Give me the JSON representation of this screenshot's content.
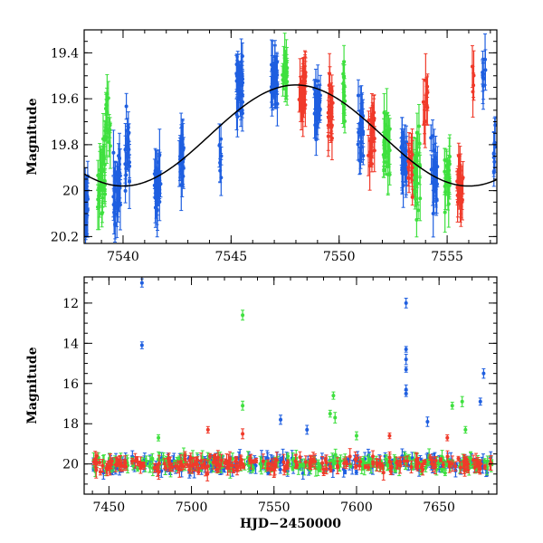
{
  "colors": {
    "blue": "#1f5fe0",
    "green": "#3fe03f",
    "red": "#f03a2a",
    "model": "#000000"
  },
  "chart_data": [
    {
      "type": "scatter",
      "panel": "top",
      "title": "",
      "xlabel": "",
      "ylabel": "Magnitude",
      "xlim": [
        7538.2,
        7557.3
      ],
      "ylim": [
        20.23,
        19.3
      ],
      "y_inverted": true,
      "grid": false,
      "xticks": [
        7540,
        7545,
        7550,
        7555
      ],
      "xtick_labels": [
        "7540",
        "7545",
        "7550",
        "7555"
      ],
      "yticks": [
        19.4,
        19.6,
        19.8,
        20,
        20.2
      ],
      "ytick_labels": [
        "19.4",
        "19.6",
        "19.8",
        "20",
        "20.2"
      ],
      "model_curve": {
        "description_shape": "sinusoid",
        "mean": 19.76,
        "amplitude": 0.22,
        "peak_x": 7548,
        "period": 16
      },
      "series": [
        {
          "color": "blue",
          "clusters": [
            {
              "x": 7538.3,
              "width": 0.2,
              "y_center": 20.05,
              "y_spread": 0.2,
              "n": 26
            },
            {
              "x": 7539.7,
              "width": 0.35,
              "y_center": 20.0,
              "y_spread": 0.22,
              "n": 32
            },
            {
              "x": 7540.2,
              "width": 0.2,
              "y_center": 19.82,
              "y_spread": 0.25,
              "n": 22
            },
            {
              "x": 7541.6,
              "width": 0.3,
              "y_center": 19.98,
              "y_spread": 0.2,
              "n": 28
            },
            {
              "x": 7542.7,
              "width": 0.2,
              "y_center": 19.85,
              "y_spread": 0.2,
              "n": 22
            },
            {
              "x": 7544.5,
              "width": 0.1,
              "y_center": 19.85,
              "y_spread": 0.25,
              "n": 6
            },
            {
              "x": 7545.4,
              "width": 0.3,
              "y_center": 19.55,
              "y_spread": 0.18,
              "n": 34
            },
            {
              "x": 7547.0,
              "width": 0.3,
              "y_center": 19.52,
              "y_spread": 0.16,
              "n": 30
            },
            {
              "x": 7549.0,
              "width": 0.3,
              "y_center": 19.62,
              "y_spread": 0.18,
              "n": 22
            },
            {
              "x": 7551.0,
              "width": 0.25,
              "y_center": 19.75,
              "y_spread": 0.2,
              "n": 22
            },
            {
              "x": 7553.0,
              "width": 0.25,
              "y_center": 19.88,
              "y_spread": 0.2,
              "n": 26
            },
            {
              "x": 7554.4,
              "width": 0.3,
              "y_center": 19.92,
              "y_spread": 0.22,
              "n": 28
            },
            {
              "x": 7556.7,
              "width": 0.15,
              "y_center": 19.5,
              "y_spread": 0.1,
              "n": 8
            },
            {
              "x": 7557.2,
              "width": 0.1,
              "y_center": 19.85,
              "y_spread": 0.2,
              "n": 8
            }
          ]
        },
        {
          "color": "green",
          "clusters": [
            {
              "x": 7539.0,
              "width": 0.35,
              "y_center": 19.95,
              "y_spread": 0.25,
              "n": 30
            },
            {
              "x": 7539.3,
              "width": 0.25,
              "y_center": 19.7,
              "y_spread": 0.2,
              "n": 16
            },
            {
              "x": 7547.5,
              "width": 0.25,
              "y_center": 19.48,
              "y_spread": 0.12,
              "n": 16
            },
            {
              "x": 7550.2,
              "width": 0.2,
              "y_center": 19.6,
              "y_spread": 0.2,
              "n": 12
            },
            {
              "x": 7552.2,
              "width": 0.3,
              "y_center": 19.8,
              "y_spread": 0.22,
              "n": 26
            },
            {
              "x": 7553.6,
              "width": 0.3,
              "y_center": 19.92,
              "y_spread": 0.24,
              "n": 24
            },
            {
              "x": 7555.0,
              "width": 0.25,
              "y_center": 19.95,
              "y_spread": 0.2,
              "n": 20
            }
          ]
        },
        {
          "color": "red",
          "clusters": [
            {
              "x": 7548.3,
              "width": 0.3,
              "y_center": 19.55,
              "y_spread": 0.2,
              "n": 30
            },
            {
              "x": 7549.6,
              "width": 0.25,
              "y_center": 19.62,
              "y_spread": 0.2,
              "n": 20
            },
            {
              "x": 7551.5,
              "width": 0.3,
              "y_center": 19.75,
              "y_spread": 0.2,
              "n": 22
            },
            {
              "x": 7553.3,
              "width": 0.2,
              "y_center": 19.88,
              "y_spread": 0.2,
              "n": 14
            },
            {
              "x": 7554.0,
              "width": 0.2,
              "y_center": 19.6,
              "y_spread": 0.15,
              "n": 10
            },
            {
              "x": 7555.6,
              "width": 0.3,
              "y_center": 19.98,
              "y_spread": 0.2,
              "n": 22
            },
            {
              "x": 7556.2,
              "width": 0.1,
              "y_center": 19.5,
              "y_spread": 0.1,
              "n": 4
            }
          ]
        }
      ]
    },
    {
      "type": "scatter",
      "panel": "bottom",
      "title": "",
      "xlabel": "HJD−2450000",
      "ylabel": "Magnitude",
      "xlim": [
        7435,
        7685
      ],
      "ylim": [
        21.5,
        10.7
      ],
      "y_inverted": true,
      "grid": false,
      "xticks": [
        7450,
        7500,
        7550,
        7600,
        7650
      ],
      "xtick_labels": [
        "7450",
        "7500",
        "7550",
        "7600",
        "7650"
      ],
      "yticks": [
        12,
        14,
        16,
        18,
        20
      ],
      "ytick_labels": [
        "12",
        "14",
        "16",
        "18",
        "20"
      ],
      "bulk": {
        "x_range": [
          7440,
          7682
        ],
        "y_center": 20.0,
        "y_spread": 0.9,
        "n_per_color": 230
      },
      "outliers": [
        {
          "color": "blue",
          "x": 7470,
          "y": 11.0
        },
        {
          "color": "blue",
          "x": 7470,
          "y": 14.1
        },
        {
          "color": "blue",
          "x": 7630,
          "y": 12.0
        },
        {
          "color": "blue",
          "x": 7630,
          "y": 14.3
        },
        {
          "color": "blue",
          "x": 7630,
          "y": 14.8
        },
        {
          "color": "blue",
          "x": 7630,
          "y": 15.3
        },
        {
          "color": "blue",
          "x": 7630,
          "y": 16.3
        },
        {
          "color": "blue",
          "x": 7630,
          "y": 16.5
        },
        {
          "color": "blue",
          "x": 7643,
          "y": 17.9
        },
        {
          "color": "blue",
          "x": 7677,
          "y": 15.5
        },
        {
          "color": "blue",
          "x": 7675,
          "y": 16.9
        },
        {
          "color": "blue",
          "x": 7554,
          "y": 17.8
        },
        {
          "color": "blue",
          "x": 7570,
          "y": 18.3
        },
        {
          "color": "green",
          "x": 7531,
          "y": 12.6
        },
        {
          "color": "green",
          "x": 7531,
          "y": 17.1
        },
        {
          "color": "green",
          "x": 7586,
          "y": 16.6
        },
        {
          "color": "green",
          "x": 7584,
          "y": 17.5
        },
        {
          "color": "green",
          "x": 7587,
          "y": 17.7
        },
        {
          "color": "green",
          "x": 7664,
          "y": 16.9
        },
        {
          "color": "green",
          "x": 7658,
          "y": 17.1
        },
        {
          "color": "green",
          "x": 7666,
          "y": 18.3
        },
        {
          "color": "green",
          "x": 7480,
          "y": 18.7
        },
        {
          "color": "green",
          "x": 7600,
          "y": 18.6
        },
        {
          "color": "red",
          "x": 7531,
          "y": 18.5
        },
        {
          "color": "red",
          "x": 7510,
          "y": 18.3
        },
        {
          "color": "red",
          "x": 7620,
          "y": 18.6
        },
        {
          "color": "red",
          "x": 7655,
          "y": 18.7
        }
      ]
    }
  ]
}
